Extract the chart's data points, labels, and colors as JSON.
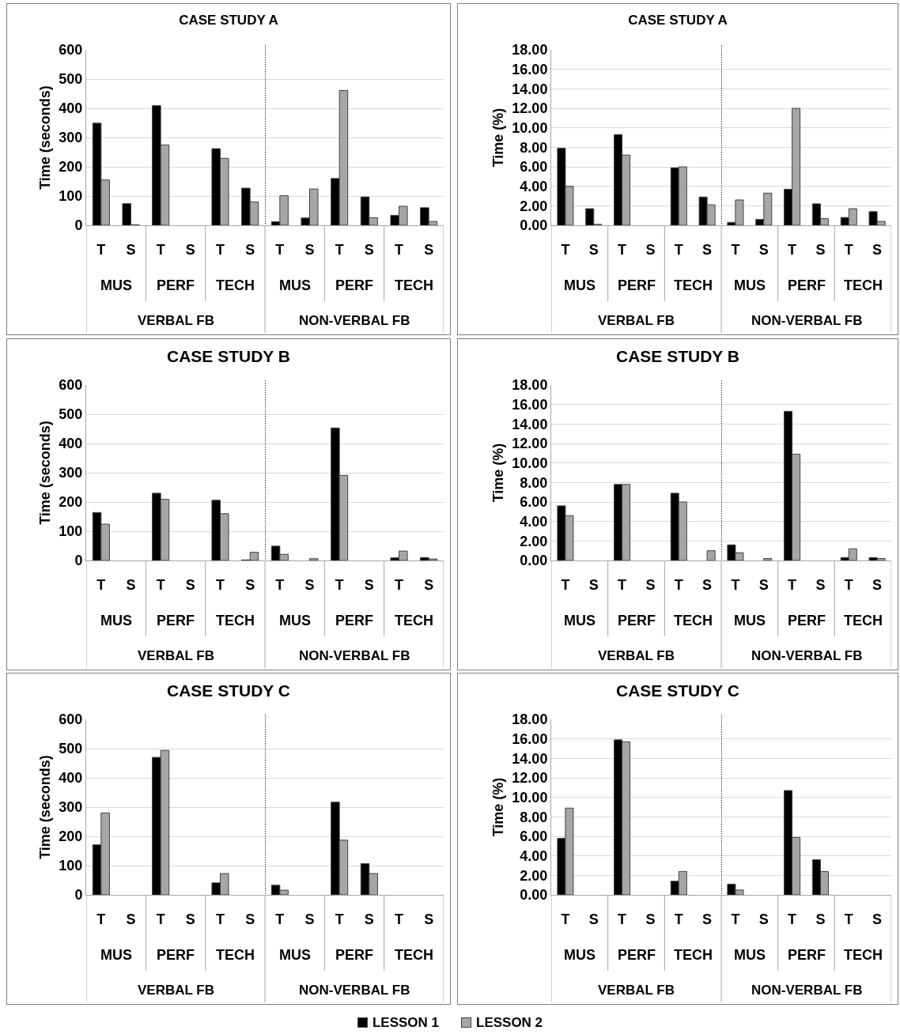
{
  "chart_data": [
    {
      "type": "bar",
      "title": "CASE STUDY A",
      "ylabel": "Time (seconds)",
      "categories": [
        "T",
        "S",
        "T",
        "S",
        "T",
        "S",
        "T",
        "S",
        "T",
        "S",
        "T",
        "S"
      ],
      "annotations": [
        "MUS",
        "PERF",
        "TECH",
        "MUS",
        "PERF",
        "TECH",
        "VERBAL FB",
        "NON-VERBAL FB"
      ],
      "series": [
        {
          "name": "LESSON 1",
          "color": "#000000",
          "values": [
            349,
            74,
            409,
            0,
            262,
            127,
            12,
            25,
            160,
            97,
            34,
            60
          ]
        },
        {
          "name": "LESSON 2",
          "color": "#a6a6a6",
          "values": [
            155,
            2,
            275,
            0,
            229,
            80,
            101,
            124,
            461,
            26,
            65,
            13
          ]
        }
      ],
      "ylim": [
        0,
        600
      ],
      "yticks": [
        0,
        100,
        200,
        300,
        400,
        500,
        600
      ],
      "grid": "y",
      "legend": "bottom"
    },
    {
      "type": "bar",
      "title": "CASE STUDY A",
      "ylabel": "Time (%)",
      "categories": [
        "T",
        "S",
        "T",
        "S",
        "T",
        "S",
        "T",
        "S",
        "T",
        "S",
        "T",
        "S"
      ],
      "annotations": [
        "MUS",
        "PERF",
        "TECH",
        "MUS",
        "PERF",
        "TECH",
        "VERBAL FB",
        "NON-VERBAL FB"
      ],
      "series": [
        {
          "color": "#000000",
          "values": [
            7.9,
            1.7,
            9.3,
            0,
            5.9,
            2.9,
            0.3,
            0.6,
            3.7,
            2.2,
            0.8,
            1.4
          ]
        },
        {
          "color": "#a6a6a6",
          "values": [
            4.0,
            0.1,
            7.2,
            0,
            6.0,
            2.1,
            2.6,
            3.3,
            12.0,
            0.7,
            1.7,
            0.4
          ]
        }
      ],
      "ylim": [
        0,
        18
      ],
      "yticks": [
        {
          "value": 0,
          "label": "0.00"
        },
        {
          "value": 2,
          "label": "2.00"
        },
        {
          "value": 4,
          "label": "4.00"
        },
        {
          "value": 6,
          "label": "6.00"
        },
        {
          "value": 8,
          "label": "8.00"
        },
        {
          "value": 10,
          "label": "10.00"
        },
        {
          "value": 12,
          "label": "12.00"
        },
        {
          "value": 14,
          "label": "14.00"
        },
        {
          "value": 16,
          "label": "16.00"
        },
        {
          "value": 18,
          "label": "18.00"
        }
      ],
      "grid": "y"
    },
    {
      "type": "bar",
      "title": "CASE STUDY B",
      "ylabel": "Time (seconds)",
      "categories": [
        "T",
        "S",
        "T",
        "S",
        "T",
        "S",
        "T",
        "S",
        "T",
        "S",
        "T",
        "S"
      ],
      "annotations": [
        "MUS",
        "PERF",
        "TECH",
        "MUS",
        "PERF",
        "TECH",
        "VERBAL FB",
        "NON-VERBAL FB"
      ],
      "series": [
        {
          "color": "#000000",
          "values": [
            164,
            0,
            230,
            0,
            206,
            2,
            49,
            0,
            453,
            0,
            9,
            10
          ]
        },
        {
          "color": "#a6a6a6",
          "values": [
            124,
            0,
            209,
            0,
            160,
            28,
            21,
            6,
            291,
            0,
            32,
            5
          ]
        }
      ],
      "ylim": [
        0,
        600
      ],
      "yticks": [
        0,
        100,
        200,
        300,
        400,
        500,
        600
      ],
      "grid": "y"
    },
    {
      "type": "bar",
      "title": "CASE STUDY B",
      "ylabel": "Time (%)",
      "categories": [
        "T",
        "S",
        "T",
        "S",
        "T",
        "S",
        "T",
        "S",
        "T",
        "S",
        "T",
        "S"
      ],
      "annotations": [
        "MUS",
        "PERF",
        "TECH",
        "MUS",
        "PERF",
        "TECH",
        "VERBAL FB",
        "NON-VERBAL FB"
      ],
      "series": [
        {
          "color": "#000000",
          "values": [
            5.6,
            0,
            7.8,
            0,
            6.9,
            0,
            1.6,
            0,
            15.3,
            0,
            0.3,
            0.3
          ]
        },
        {
          "color": "#a6a6a6",
          "values": [
            4.6,
            0,
            7.8,
            0,
            6.0,
            1.0,
            0.8,
            0.2,
            10.9,
            0,
            1.2,
            0.2
          ]
        }
      ],
      "ylim": [
        0,
        18
      ],
      "yticks": [
        {
          "value": 0,
          "label": "0.00"
        },
        {
          "value": 2,
          "label": "2.00"
        },
        {
          "value": 4,
          "label": "4.00"
        },
        {
          "value": 6,
          "label": "6.00"
        },
        {
          "value": 8,
          "label": "8.00"
        },
        {
          "value": 10,
          "label": "10.00"
        },
        {
          "value": 12,
          "label": "12.00"
        },
        {
          "value": 14,
          "label": "14.00"
        },
        {
          "value": 16,
          "label": "16.00"
        },
        {
          "value": 18,
          "label": "18.00"
        }
      ],
      "grid": "y"
    },
    {
      "type": "bar",
      "title": "CASE STUDY C",
      "ylabel": "Time (seconds)",
      "categories": [
        "T",
        "S",
        "T",
        "S",
        "T",
        "S",
        "T",
        "S",
        "T",
        "S",
        "T",
        "S"
      ],
      "annotations": [
        "MUS",
        "PERF",
        "TECH",
        "MUS",
        "PERF",
        "TECH",
        "VERBAL FB",
        "NON-VERBAL FB"
      ],
      "series": [
        {
          "color": "#000000",
          "values": [
            171,
            0,
            470,
            0,
            41,
            0,
            33,
            0,
            317,
            107,
            0,
            0
          ]
        },
        {
          "color": "#a6a6a6",
          "values": [
            280,
            0,
            494,
            0,
            73,
            0,
            16,
            0,
            187,
            73,
            0,
            0
          ]
        }
      ],
      "ylim": [
        0,
        600
      ],
      "yticks": [
        0,
        100,
        200,
        300,
        400,
        500,
        600
      ],
      "grid": "y"
    },
    {
      "type": "bar",
      "title": "CASE STUDY C",
      "ylabel": "Time (%)",
      "categories": [
        "T",
        "S",
        "T",
        "S",
        "T",
        "S",
        "T",
        "S",
        "T",
        "S",
        "T",
        "S"
      ],
      "annotations": [
        "MUS",
        "PERF",
        "TECH",
        "MUS",
        "PERF",
        "TECH",
        "VERBAL FB",
        "NON-VERBAL FB"
      ],
      "series": [
        {
          "color": "#000000",
          "values": [
            5.8,
            0,
            15.9,
            0,
            1.4,
            0,
            1.1,
            0,
            10.7,
            3.6,
            0,
            0
          ]
        },
        {
          "color": "#a6a6a6",
          "values": [
            8.9,
            0,
            15.7,
            0,
            2.4,
            0,
            0.5,
            0,
            5.9,
            2.4,
            0,
            0
          ]
        }
      ],
      "ylim": [
        0,
        18
      ],
      "yticks": [
        {
          "value": 0,
          "label": "0.00"
        },
        {
          "value": 2,
          "label": "2.00"
        },
        {
          "value": 4,
          "label": "4.00"
        },
        {
          "value": 6,
          "label": "6.00"
        },
        {
          "value": 8,
          "label": "8.00"
        },
        {
          "value": 10,
          "label": "10.00"
        },
        {
          "value": 12,
          "label": "12.00"
        },
        {
          "value": 14,
          "label": "14.00"
        },
        {
          "value": 16,
          "label": "16.00"
        },
        {
          "value": 18,
          "label": "18.00"
        }
      ],
      "grid": "y"
    }
  ]
}
